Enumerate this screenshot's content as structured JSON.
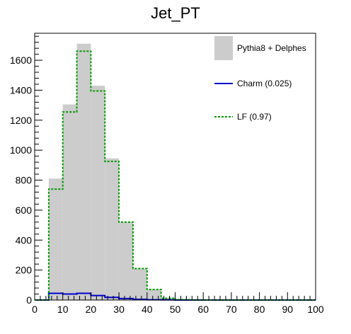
{
  "chart_data": {
    "type": "bar",
    "title": "Jet_PT",
    "xlabel": "",
    "ylabel": "",
    "xlim": [
      0,
      100
    ],
    "ylim": [
      0,
      1780
    ],
    "x_ticks": [
      0,
      10,
      20,
      30,
      40,
      50,
      60,
      70,
      80,
      90,
      100
    ],
    "y_ticks": [
      0,
      200,
      400,
      600,
      800,
      1000,
      1200,
      1400,
      1600
    ],
    "bin_edges": [
      0,
      5,
      10,
      15,
      20,
      25,
      30,
      35,
      40,
      45,
      50,
      55,
      60,
      65,
      70,
      75,
      80,
      85,
      90,
      95,
      100
    ],
    "grid": false,
    "legend_position": "top-right",
    "series": [
      {
        "name": "Pythia8 + Delphes",
        "style": "filled",
        "color": "#cccccc",
        "values": [
          0,
          810,
          1305,
          1710,
          1430,
          945,
          520,
          210,
          70,
          12,
          3,
          1,
          0,
          0,
          0,
          0,
          0,
          0,
          0,
          0
        ]
      },
      {
        "name": "Charm (0.025)",
        "style": "solid-line",
        "color": "#0000cc",
        "values": [
          0,
          45,
          40,
          45,
          30,
          18,
          10,
          5,
          2,
          1,
          0,
          0,
          0,
          0,
          0,
          0,
          0,
          0,
          0,
          0
        ]
      },
      {
        "name": "LF (0.97)",
        "style": "dotted-line",
        "color": "#009900",
        "values": [
          0,
          740,
          1255,
          1660,
          1395,
          925,
          520,
          210,
          70,
          12,
          3,
          1,
          0,
          0,
          0,
          0,
          0,
          0,
          0,
          0
        ]
      }
    ]
  }
}
